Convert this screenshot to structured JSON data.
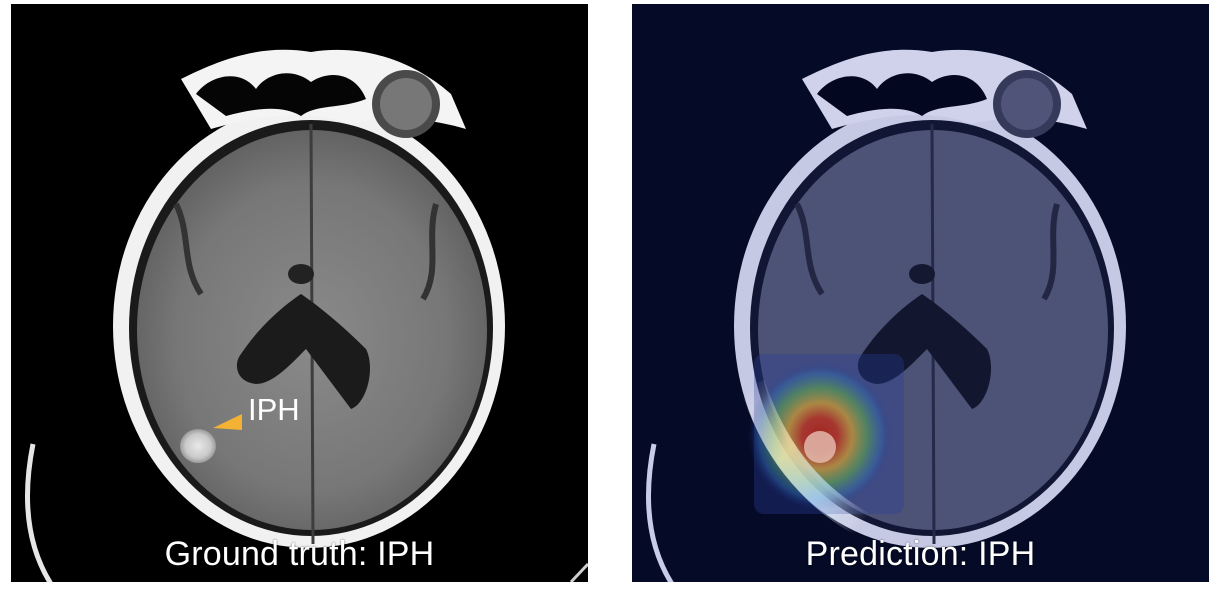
{
  "panels": [
    {
      "caption": "Ground truth: IPH",
      "annotation": {
        "label": "IPH",
        "arrow_color": "#f3b234"
      }
    },
    {
      "caption": "Prediction: IPH",
      "overlay": "heatmap"
    }
  ],
  "colors": {
    "left_background": "#000000",
    "right_background": "#050a26",
    "caption_text": "#ffffff"
  }
}
